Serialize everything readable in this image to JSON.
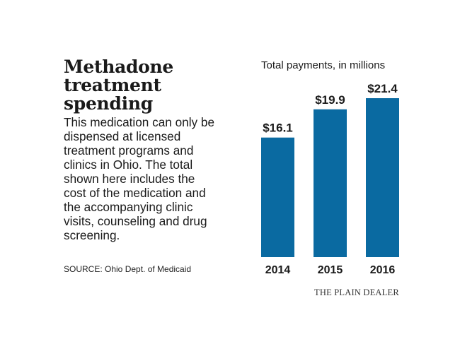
{
  "title_lines": [
    "Methadone",
    "treatment",
    "spending"
  ],
  "description": "This medication can only be dispensed at licensed treatment programs and clinics in Ohio. The total shown here includes the cost of the medication and the accompanying clinic visits, counseling and drug screening.",
  "source": "SOURCE: Ohio Dept. of Medicaid",
  "credit": "THE PLAIN DEALER",
  "chart_data": {
    "type": "bar",
    "title": "Total payments, in millions",
    "categories": [
      "2014",
      "2015",
      "2016"
    ],
    "values": [
      16.1,
      19.9,
      21.4
    ],
    "data_labels": [
      "$16.1",
      "$19.9",
      "$21.4"
    ],
    "color": "#0a6aa1",
    "ylim": [
      0,
      21.4
    ],
    "grid": false,
    "legend": "none"
  }
}
